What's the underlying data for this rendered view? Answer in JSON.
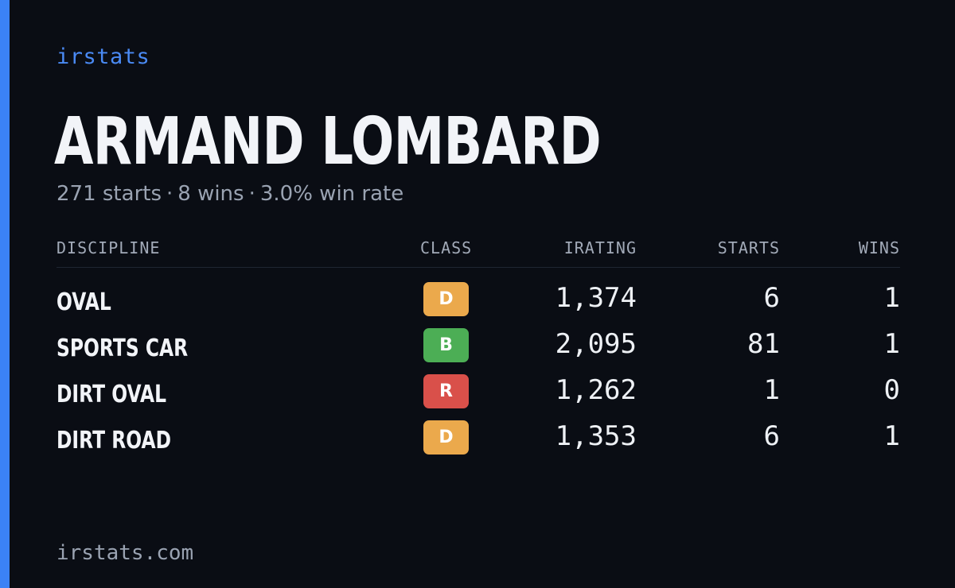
{
  "brand": "irstats",
  "driver": {
    "name": "ARMAND LOMBARD",
    "starts_text": "271 starts",
    "wins_text": "8 wins",
    "win_rate_text": "3.0% win rate",
    "separator": "·"
  },
  "table": {
    "headers": {
      "discipline": "DISCIPLINE",
      "class": "CLASS",
      "irating": "IRATING",
      "starts": "STARTS",
      "wins": "WINS"
    },
    "rows": [
      {
        "discipline": "OVAL",
        "class": "D",
        "class_color": "#eba94c",
        "irating": "1,374",
        "starts": "6",
        "wins": "1"
      },
      {
        "discipline": "SPORTS CAR",
        "class": "B",
        "class_color": "#4cae55",
        "irating": "2,095",
        "starts": "81",
        "wins": "1"
      },
      {
        "discipline": "DIRT OVAL",
        "class": "R",
        "class_color": "#d9504a",
        "irating": "1,262",
        "starts": "1",
        "wins": "0"
      },
      {
        "discipline": "DIRT ROAD",
        "class": "D",
        "class_color": "#eba94c",
        "irating": "1,353",
        "starts": "6",
        "wins": "1"
      }
    ]
  },
  "footer": "irstats.com",
  "colors": {
    "background": "#0a0d14",
    "accent": "#3b82f6"
  }
}
